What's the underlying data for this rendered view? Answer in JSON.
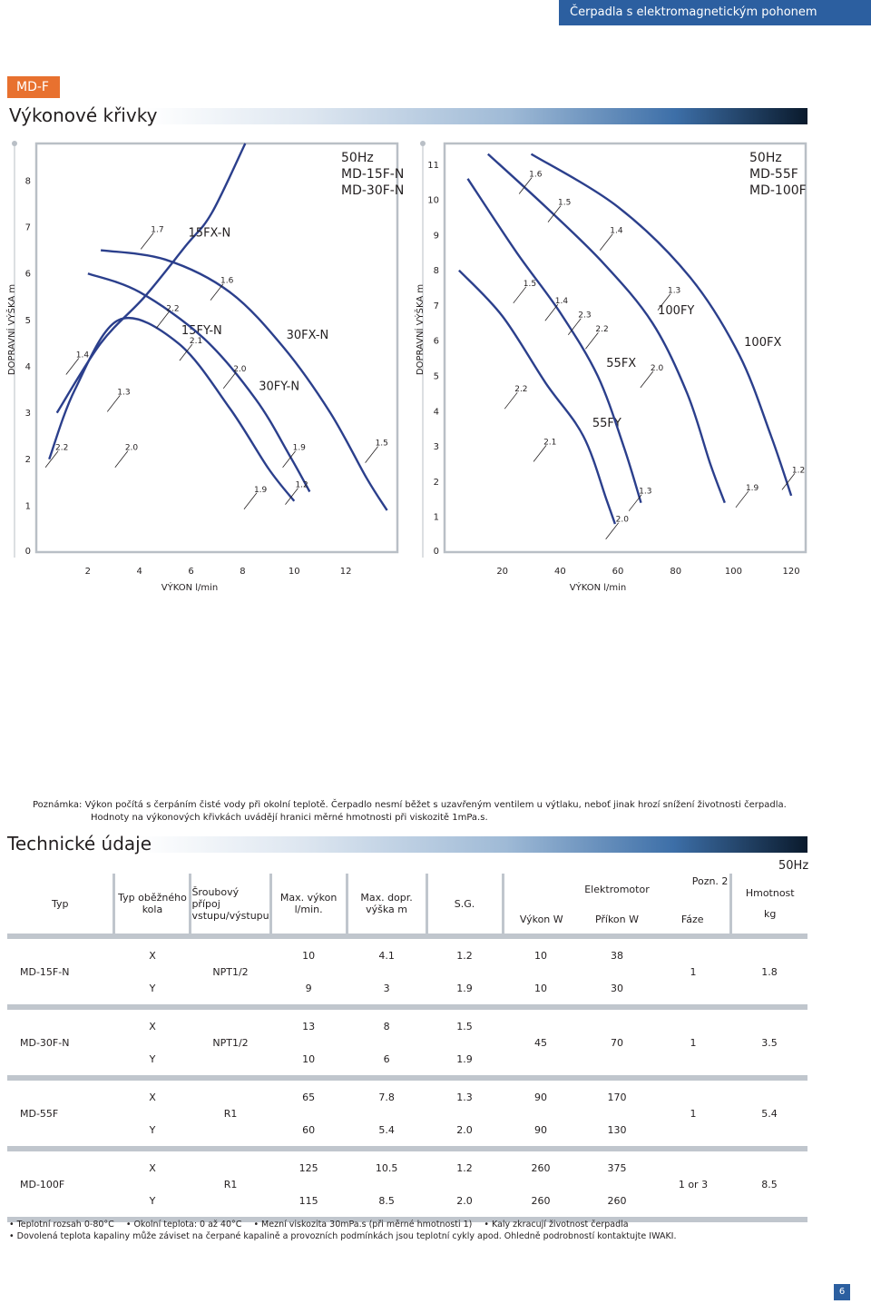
{
  "header": {
    "title": "Čerpadla s elektromagnetickým pohonem"
  },
  "model_tag": "MD-F",
  "section_curves": "Výkonové křivky",
  "section_specs": "Technické údaje",
  "colors": {
    "accent_blue": "#2c5fa0",
    "tag_orange": "#e8712f",
    "curve": "#2b3f8c",
    "table_sep": "#c0c6cd"
  },
  "chart_data": [
    {
      "type": "line",
      "title": "50Hz MD-15F-N MD-30F-N",
      "title_lines": [
        "50Hz",
        "MD-15F-N",
        "MD-30F-N"
      ],
      "xlabel": "VÝKON l/min",
      "ylabel": "DOPRAVNÍ VÝŠKA m",
      "xlim": [
        0,
        14
      ],
      "ylim": [
        0,
        8.8
      ],
      "xticks": [
        "2",
        "4",
        "6",
        "8",
        "10",
        "12"
      ],
      "yticks": [
        "0",
        "1",
        "2",
        "3",
        "4",
        "5",
        "6",
        "7",
        "8"
      ],
      "series": [
        {
          "name": "15FX-N",
          "points": [
            [
              0.8,
              3.0
            ],
            [
              2.5,
              4.5
            ],
            [
              4.2,
              5.5
            ],
            [
              5.8,
              6.6
            ],
            [
              6.8,
              7.3
            ],
            [
              8.1,
              8.8
            ]
          ]
        },
        {
          "name": "15FY-N",
          "points": [
            [
              0.5,
              2.0
            ],
            [
              1.5,
              3.5
            ],
            [
              3.2,
              5.0
            ],
            [
              5.5,
              4.5
            ],
            [
              7.5,
              3.1
            ],
            [
              9.0,
              1.8
            ],
            [
              10.0,
              1.1
            ]
          ]
        },
        {
          "name": "30FY-N",
          "points": [
            [
              2.0,
              6.0
            ],
            [
              4.0,
              5.6
            ],
            [
              6.5,
              4.6
            ],
            [
              8.5,
              3.3
            ],
            [
              9.8,
              2.1
            ],
            [
              10.6,
              1.3
            ]
          ]
        },
        {
          "name": "30FX-N",
          "points": [
            [
              2.5,
              6.5
            ],
            [
              5.0,
              6.3
            ],
            [
              7.5,
              5.6
            ],
            [
              9.6,
              4.4
            ],
            [
              11.4,
              3.0
            ],
            [
              12.8,
              1.6
            ],
            [
              13.6,
              0.9
            ]
          ]
        }
      ],
      "viscosity_marks": [
        {
          "label": "2.2",
          "x": 0.6,
          "y": 2.0
        },
        {
          "label": "1.4",
          "x": 1.4,
          "y": 4.0
        },
        {
          "label": "1.3",
          "x": 3.0,
          "y": 3.2
        },
        {
          "label": "2.0",
          "x": 3.3,
          "y": 2.0
        },
        {
          "label": "1.7",
          "x": 4.3,
          "y": 6.7
        },
        {
          "label": "2.2",
          "x": 4.9,
          "y": 5.0
        },
        {
          "label": "2.1",
          "x": 5.8,
          "y": 4.3
        },
        {
          "label": "1.6",
          "x": 7.0,
          "y": 5.6
        },
        {
          "label": "2.0",
          "x": 7.5,
          "y": 3.7
        },
        {
          "label": "1.9",
          "x": 8.3,
          "y": 1.1
        },
        {
          "label": "1.9",
          "x": 9.8,
          "y": 2.0
        },
        {
          "label": "1.2",
          "x": 9.9,
          "y": 1.2
        },
        {
          "label": "1.5",
          "x": 13.0,
          "y": 2.1
        }
      ]
    },
    {
      "type": "line",
      "title": "50Hz MD-55F MD-100F",
      "title_lines": [
        "50Hz",
        "MD-55F",
        "MD-100F"
      ],
      "xlabel": "VÝKON l/min",
      "ylabel": "DOPRAVNÍ VÝŠKA m",
      "xlim": [
        0,
        125
      ],
      "ylim": [
        0,
        11.6
      ],
      "xticks": [
        "20",
        "40",
        "60",
        "80",
        "100",
        "120"
      ],
      "yticks": [
        "0",
        "1",
        "2",
        "3",
        "4",
        "5",
        "6",
        "7",
        "8",
        "9",
        "10",
        "11"
      ],
      "series": [
        {
          "name": "55FY",
          "points": [
            [
              5,
              8.0
            ],
            [
              20,
              6.7
            ],
            [
              35,
              4.8
            ],
            [
              48,
              3.3
            ],
            [
              56,
              1.5
            ],
            [
              59,
              0.8
            ]
          ]
        },
        {
          "name": "55FX",
          "points": [
            [
              8,
              10.6
            ],
            [
              25,
              8.5
            ],
            [
              40,
              6.8
            ],
            [
              53,
              5.0
            ],
            [
              62,
              3.0
            ],
            [
              68,
              1.4
            ]
          ]
        },
        {
          "name": "100FY",
          "points": [
            [
              15,
              11.3
            ],
            [
              35,
              9.8
            ],
            [
              55,
              8.2
            ],
            [
              72,
              6.5
            ],
            [
              84,
              4.5
            ],
            [
              92,
              2.5
            ],
            [
              97,
              1.4
            ]
          ]
        },
        {
          "name": "100FX",
          "points": [
            [
              30,
              11.3
            ],
            [
              60,
              9.8
            ],
            [
              85,
              7.8
            ],
            [
              102,
              5.6
            ],
            [
              113,
              3.3
            ],
            [
              120,
              1.6
            ]
          ]
        }
      ],
      "viscosity_marks": [
        {
          "label": "1.6",
          "x": 28,
          "y": 10.4
        },
        {
          "label": "1.5",
          "x": 38,
          "y": 9.6
        },
        {
          "label": "1.4",
          "x": 56,
          "y": 8.8
        },
        {
          "label": "1.5",
          "x": 26,
          "y": 7.3
        },
        {
          "label": "1.4",
          "x": 37,
          "y": 6.8
        },
        {
          "label": "2.3",
          "x": 45,
          "y": 6.4
        },
        {
          "label": "2.2",
          "x": 51,
          "y": 6.0
        },
        {
          "label": "1.3",
          "x": 76,
          "y": 7.1
        },
        {
          "label": "2.2",
          "x": 23,
          "y": 4.3
        },
        {
          "label": "2.1",
          "x": 33,
          "y": 2.8
        },
        {
          "label": "2.0",
          "x": 70,
          "y": 4.9
        },
        {
          "label": "1.3",
          "x": 66,
          "y": 1.4
        },
        {
          "label": "2.0",
          "x": 58,
          "y": 0.6
        },
        {
          "label": "1.9",
          "x": 103,
          "y": 1.5
        },
        {
          "label": "1.2",
          "x": 119,
          "y": 2.0
        }
      ]
    }
  ],
  "note": {
    "label": "Poznámka:",
    "line1": "Výkon počítá s čerpáním čisté vody při okolní teplotě. Čerpadlo nesmí běžet s uzavřeným ventilem u výtlaku, neboť jinak hrozí snížení životnosti čerpadla.",
    "line2": "Hodnoty na výkonových křivkách uvádějí hranici měrné hmotnosti při viskozitě 1mPa.s."
  },
  "spec_table": {
    "freq": "50Hz",
    "headers": {
      "typ": "Typ",
      "impeller": "Typ oběžného kola",
      "connection": "Šroubový přípoj vstupu/výstupu",
      "max_flow": "Max. výkon l/min.",
      "max_head": "Max. dopr. výška m",
      "sg": "S.G.",
      "motor": "Elektromotor",
      "note2": "Pozn. 2",
      "output": "Výkon W",
      "input": "Příkon W",
      "phase": "Fáze",
      "weight": "Hmotnost",
      "weight_unit": "kg"
    },
    "rows": [
      {
        "model": "MD-15F-N",
        "connection": "NPT1/2",
        "phase": "1",
        "weight": "1.8",
        "motor_merged": false,
        "variants": [
          {
            "impeller": "X",
            "flow": "10",
            "head": "4.1",
            "sg": "1.2",
            "output": "10",
            "input": "38"
          },
          {
            "impeller": "Y",
            "flow": "9",
            "head": "3",
            "sg": "1.9",
            "output": "10",
            "input": "30"
          }
        ]
      },
      {
        "model": "MD-30F-N",
        "connection": "NPT1/2",
        "phase": "1",
        "weight": "3.5",
        "motor_merged": true,
        "output": "45",
        "input": "70",
        "variants": [
          {
            "impeller": "X",
            "flow": "13",
            "head": "8",
            "sg": "1.5"
          },
          {
            "impeller": "Y",
            "flow": "10",
            "head": "6",
            "sg": "1.9"
          }
        ]
      },
      {
        "model": "MD-55F",
        "connection": "R1",
        "phase": "1",
        "weight": "5.4",
        "motor_merged": false,
        "variants": [
          {
            "impeller": "X",
            "flow": "65",
            "head": "7.8",
            "sg": "1.3",
            "output": "90",
            "input": "170"
          },
          {
            "impeller": "Y",
            "flow": "60",
            "head": "5.4",
            "sg": "2.0",
            "output": "90",
            "input": "130"
          }
        ]
      },
      {
        "model": "MD-100F",
        "connection": "R1",
        "phase": "1 or 3",
        "weight": "8.5",
        "motor_merged": false,
        "variants": [
          {
            "impeller": "X",
            "flow": "125",
            "head": "10.5",
            "sg": "1.2",
            "output": "260",
            "input": "375"
          },
          {
            "impeller": "Y",
            "flow": "115",
            "head": "8.5",
            "sg": "2.0",
            "output": "260",
            "input": "260"
          }
        ]
      }
    ]
  },
  "footnotes": {
    "line1": [
      "• Teplotní rozsah 0-80°C",
      "• Okolní teplota: 0 až 40°C",
      "• Mezní viskozita 30mPa.s (při měrné hmotnosti 1)",
      "• Kaly zkracují životnost čerpadla"
    ],
    "line2": "• Dovolená teplota kapaliny může záviset na čerpané kapalině a provozních podmínkách jsou teplotní cykly apod. Ohledně podrobností kontaktujte IWAKI."
  },
  "page_number": "6"
}
